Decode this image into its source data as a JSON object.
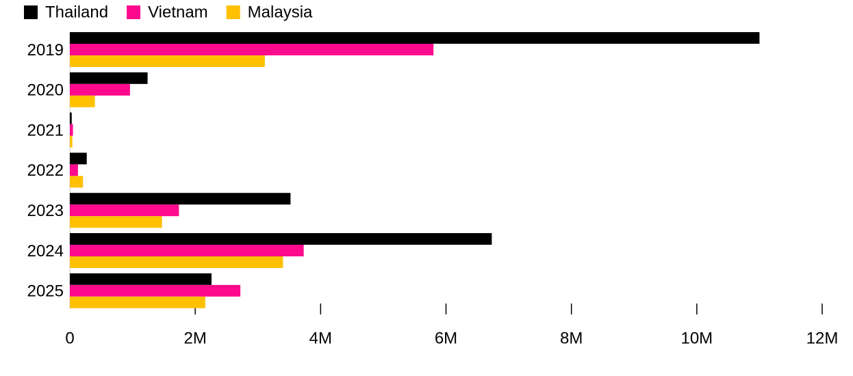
{
  "chart_data": {
    "type": "bar",
    "orientation": "horizontal",
    "categories": [
      "2019",
      "2020",
      "2021",
      "2022",
      "2023",
      "2024",
      "2025"
    ],
    "series": [
      {
        "name": "Thailand",
        "color": "#000000",
        "values": [
          11000000,
          1240000,
          30000,
          270000,
          3520000,
          6730000,
          2260000
        ]
      },
      {
        "name": "Vietnam",
        "color": "#ff0a8c",
        "values": [
          5800000,
          960000,
          50000,
          130000,
          1740000,
          3730000,
          2720000
        ]
      },
      {
        "name": "Malaysia",
        "color": "#ffc000",
        "values": [
          3110000,
          400000,
          40000,
          210000,
          1470000,
          3400000,
          2160000
        ]
      }
    ],
    "xlim": [
      0,
      12000000
    ],
    "xticks": [
      0,
      {
        "value": 2000000,
        "label": "2M"
      },
      {
        "value": 4000000,
        "label": "4M"
      },
      {
        "value": 6000000,
        "label": "6M"
      },
      {
        "value": 8000000,
        "label": "8M"
      },
      {
        "value": 10000000,
        "label": "10M"
      },
      {
        "value": 12000000,
        "label": "12M"
      }
    ],
    "legend": "top-left"
  }
}
